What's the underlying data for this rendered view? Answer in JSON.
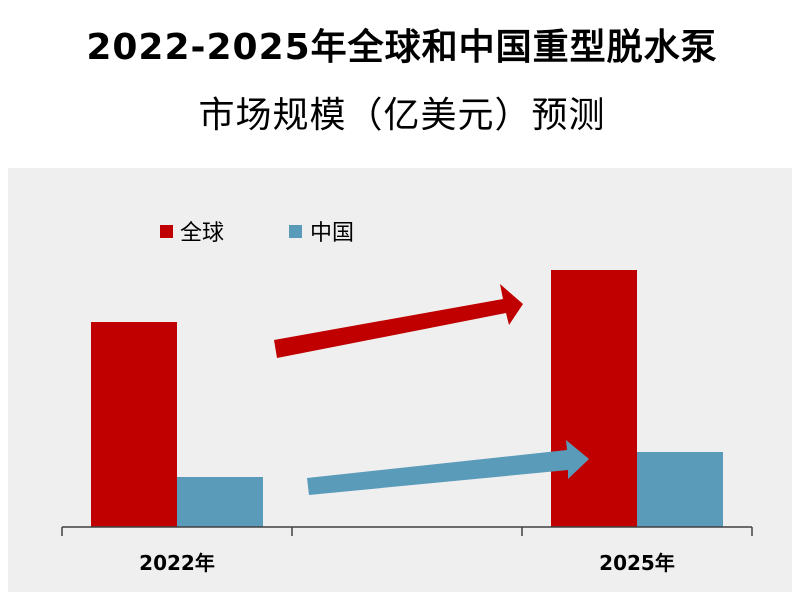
{
  "title_line1": "2022-2025年全球和中国重型脱水泵",
  "title_line2": "市场规模（亿美元）预测",
  "chart_data": {
    "type": "bar",
    "categories": [
      "2022年",
      "2025年"
    ],
    "series": [
      {
        "name": "全球",
        "color": "#c00000",
        "values": [
          205,
          257
        ]
      },
      {
        "name": "中国",
        "color": "#5b9bba",
        "values": [
          50,
          75
        ]
      }
    ],
    "ylim": [
      0,
      270
    ],
    "legend_position": "top-left",
    "grid": false,
    "annotations": [
      "growth-arrow-global",
      "growth-arrow-china"
    ]
  }
}
